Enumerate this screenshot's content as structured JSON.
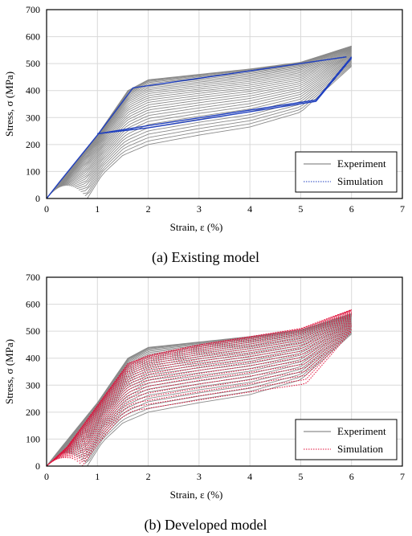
{
  "charts": [
    {
      "caption": "(a) Existing model",
      "type": "line",
      "xlabel": "Strain, ε (%)",
      "ylabel": "Stress, σ (MPa)",
      "xlim": [
        0,
        7
      ],
      "ylim": [
        0,
        700
      ],
      "xticks": [
        "0",
        "1",
        "2",
        "3",
        "4",
        "5",
        "6",
        "7"
      ],
      "yticks": [
        "0",
        "100",
        "200",
        "300",
        "400",
        "500",
        "600",
        "700"
      ],
      "grid": true,
      "legend": {
        "placement": "bottom-right",
        "entries": [
          {
            "label": "Experiment",
            "style": "solid",
            "color": "#707070"
          },
          {
            "label": "Simulation",
            "style": "dotted",
            "color": "#1f3fbf"
          }
        ]
      },
      "experiment_color": "#8a8a8a",
      "simulation_color": "#1f3fbf",
      "experiment_envelope": {
        "upper": [
          [
            0,
            0
          ],
          [
            0.25,
            60
          ],
          [
            1,
            235
          ],
          [
            1.6,
            400
          ],
          [
            2,
            440
          ],
          [
            3,
            460
          ],
          [
            4,
            480
          ],
          [
            5,
            505
          ],
          [
            6,
            565
          ]
        ],
        "lower": [
          [
            0.8,
            0
          ],
          [
            1.1,
            90
          ],
          [
            1.5,
            160
          ],
          [
            2,
            200
          ],
          [
            3,
            235
          ],
          [
            4,
            265
          ],
          [
            5,
            320
          ],
          [
            6,
            490
          ]
        ],
        "curve_count": 30
      },
      "simulation_curves": [
        [
          [
            0,
            0
          ],
          [
            0.25,
            60
          ],
          [
            1,
            235
          ],
          [
            1.7,
            410
          ],
          [
            5.9,
            525
          ]
        ],
        [
          [
            1,
            240
          ],
          [
            2,
            270
          ],
          [
            5.3,
            365
          ],
          [
            6,
            525
          ]
        ],
        [
          [
            1,
            240
          ],
          [
            2,
            262
          ],
          [
            5.3,
            360
          ],
          [
            6,
            520
          ]
        ]
      ]
    },
    {
      "caption": "(b) Developed model",
      "type": "line",
      "xlabel": "Strain, ε (%)",
      "ylabel": "Stress, σ (MPa)",
      "xlim": [
        0,
        7
      ],
      "ylim": [
        0,
        700
      ],
      "xticks": [
        "0",
        "1",
        "2",
        "3",
        "4",
        "5",
        "6",
        "7"
      ],
      "yticks": [
        "0",
        "100",
        "200",
        "300",
        "400",
        "500",
        "600",
        "700"
      ],
      "grid": true,
      "legend": {
        "placement": "bottom-right",
        "entries": [
          {
            "label": "Experiment",
            "style": "solid",
            "color": "#707070"
          },
          {
            "label": "Simulation",
            "style": "dotted",
            "color": "#e0103a"
          }
        ]
      },
      "experiment_color": "#8a8a8a",
      "simulation_color": "#e0103a",
      "experiment_envelope": {
        "upper": [
          [
            0,
            0
          ],
          [
            0.25,
            60
          ],
          [
            1,
            235
          ],
          [
            1.6,
            400
          ],
          [
            2,
            440
          ],
          [
            3,
            460
          ],
          [
            4,
            480
          ],
          [
            5,
            505
          ],
          [
            6,
            565
          ]
        ],
        "lower": [
          [
            0.8,
            0
          ],
          [
            1.1,
            90
          ],
          [
            1.5,
            160
          ],
          [
            2,
            200
          ],
          [
            3,
            235
          ],
          [
            4,
            265
          ],
          [
            5,
            320
          ],
          [
            6,
            490
          ]
        ],
        "curve_count": 30
      },
      "simulation_envelope": {
        "upper": [
          [
            0,
            0
          ],
          [
            0.4,
            70
          ],
          [
            1,
            225
          ],
          [
            1.6,
            380
          ],
          [
            2,
            410
          ],
          [
            3,
            450
          ],
          [
            4,
            480
          ],
          [
            5,
            510
          ],
          [
            6,
            580
          ]
        ],
        "lower": [
          [
            0.7,
            0
          ],
          [
            1,
            80
          ],
          [
            1.4,
            170
          ],
          [
            1.7,
            205
          ],
          [
            3,
            245
          ],
          [
            4,
            275
          ],
          [
            5.1,
            305
          ],
          [
            6,
            500
          ]
        ],
        "curve_count": 22
      }
    }
  ]
}
